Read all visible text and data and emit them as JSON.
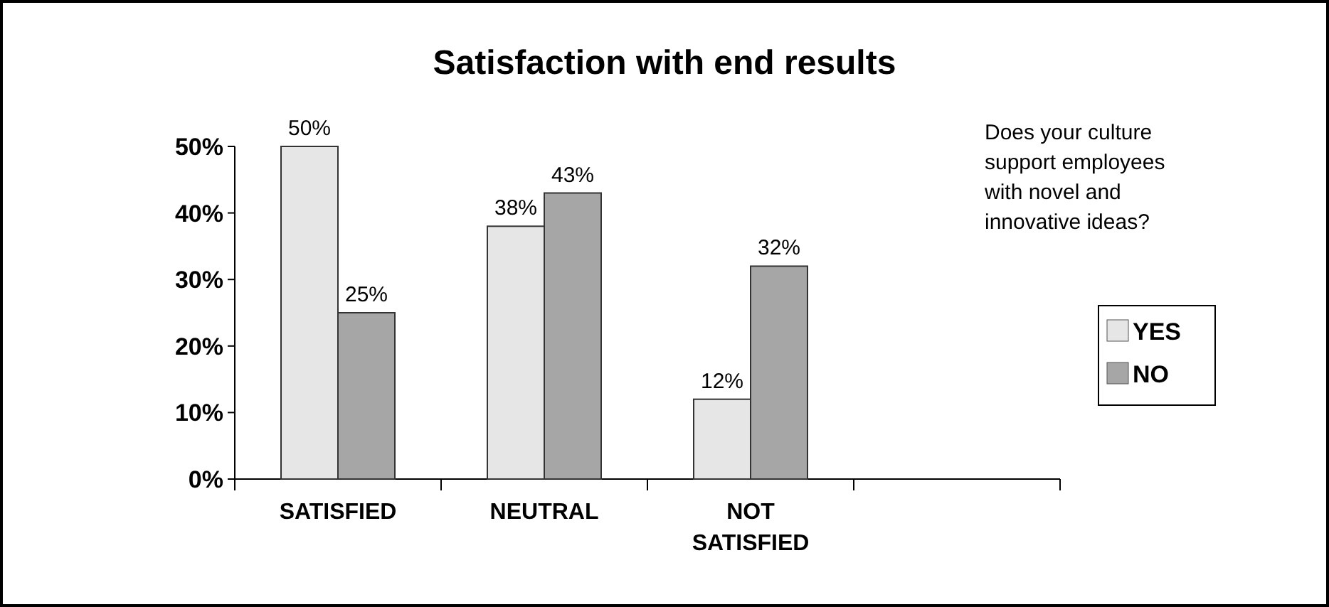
{
  "chart_data": {
    "type": "bar",
    "title": "Satisfaction with end results",
    "categories": [
      "SATISFIED",
      "NEUTRAL",
      "NOT SATISFIED",
      null
    ],
    "series": [
      {
        "name": "YES",
        "color": "#e6e6e6",
        "values": [
          50,
          38,
          12,
          null
        ],
        "value_labels": [
          "50%",
          "38%",
          "12%",
          null
        ]
      },
      {
        "name": "NO",
        "color": "#a6a6a6",
        "values": [
          25,
          43,
          32,
          null
        ],
        "value_labels": [
          "25%",
          "43%",
          "32%",
          null
        ]
      }
    ],
    "ylim": [
      0,
      50
    ],
    "yticks": [
      {
        "value": 0,
        "label": "0%"
      },
      {
        "value": 10,
        "label": "10%"
      },
      {
        "value": 20,
        "label": "20%"
      },
      {
        "value": 30,
        "label": "30%"
      },
      {
        "value": 40,
        "label": "40%"
      },
      {
        "value": 50,
        "label": "50%"
      }
    ],
    "legend": "right",
    "annotations": [
      "Does your culture support employees with novel and innovative ideas?"
    ]
  }
}
